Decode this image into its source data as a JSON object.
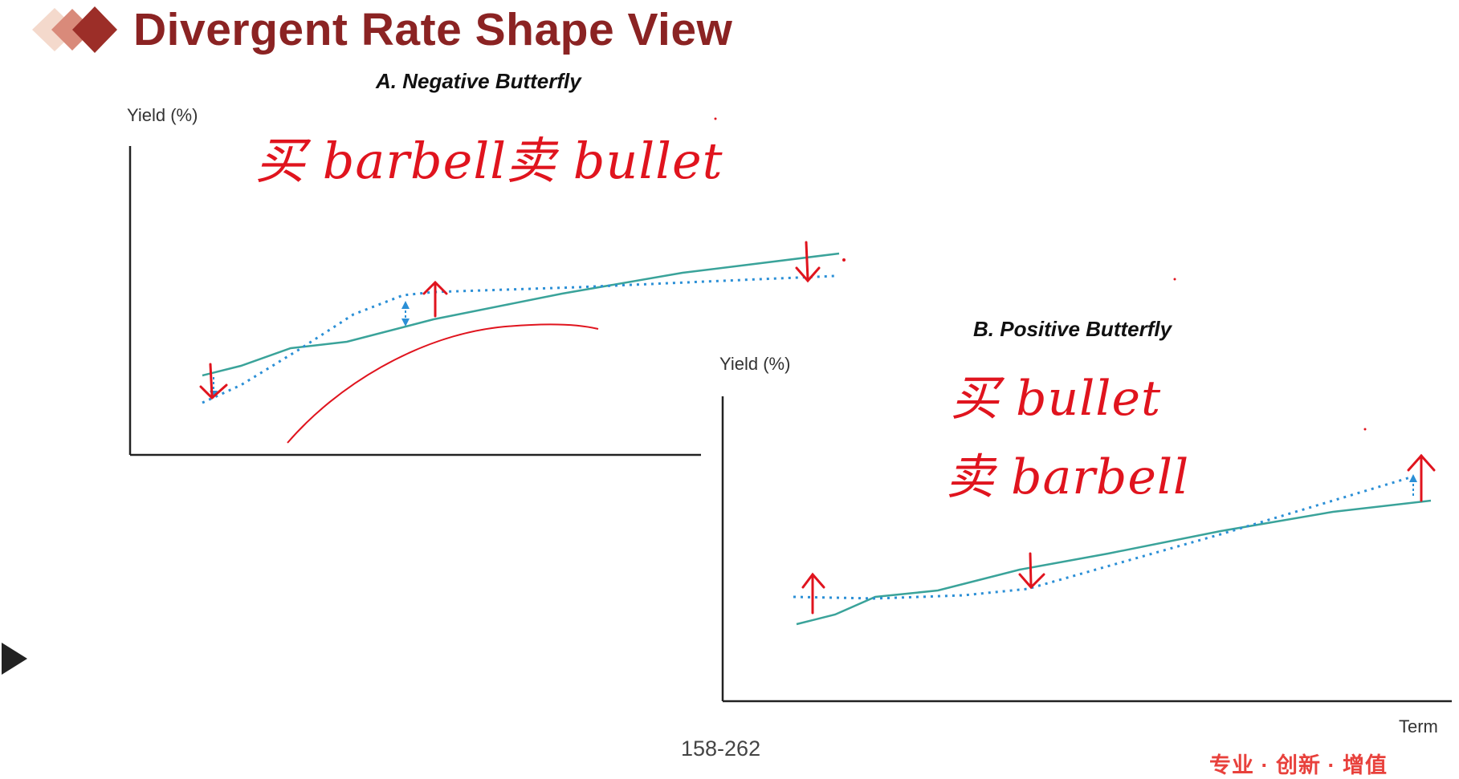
{
  "slide": {
    "title": "Divergent Rate Shape View",
    "page_number": "158-262",
    "slogan": "专业 · 创新 · 增值",
    "brand_colors": {
      "title": "#8b2323",
      "slogan": "#e8413c"
    }
  },
  "panels": [
    {
      "title": "A. Negative Butterfly",
      "ylabel": "Yield (%)",
      "xlabel": "",
      "annotations": [
        "买 barbell",
        "卖 bullet"
      ]
    },
    {
      "title": "B. Positive Butterfly",
      "ylabel": "Yield (%)",
      "xlabel": "Term",
      "annotations": [
        "买 bullet",
        "卖 barbell"
      ]
    }
  ],
  "colors": {
    "solid_curve": "#3aa39a",
    "dotted_curve": "#2b8fd6",
    "annotation": "#e0141e",
    "axis": "#222222"
  },
  "icons": [
    "diamond-logo-icon",
    "play-icon",
    "arrow-up-icon",
    "arrow-down-icon"
  ]
}
